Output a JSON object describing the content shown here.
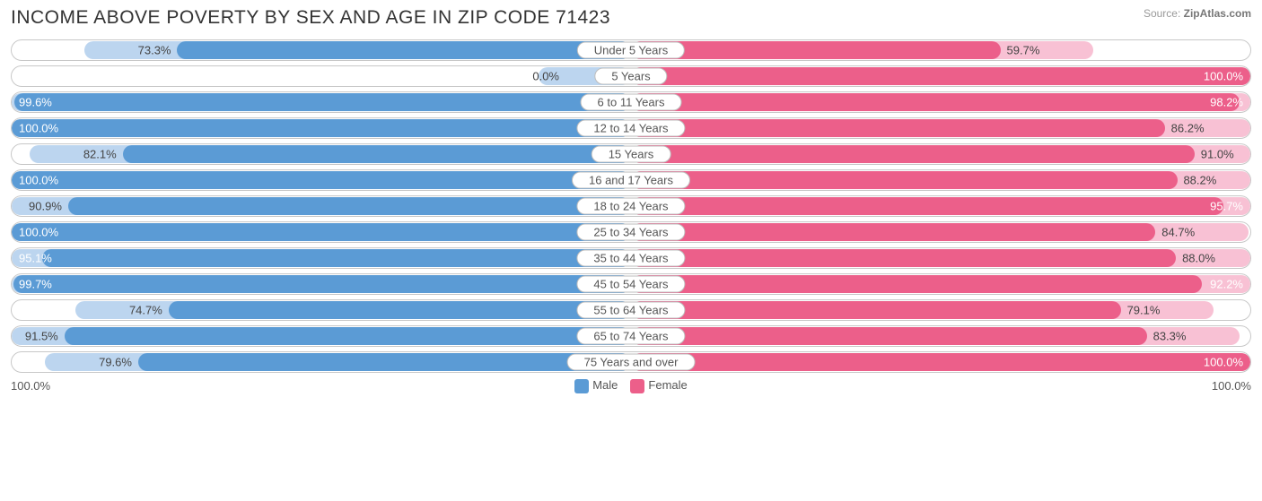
{
  "title": "INCOME ABOVE POVERTY BY SEX AND AGE IN ZIP CODE 71423",
  "source_prefix": "Source: ",
  "source_name": "ZipAtlas.com",
  "chart": {
    "type": "diverging-bar",
    "male_fill": "#5b9bd5",
    "male_track": "#bcd5ef",
    "female_fill": "#ec5f8a",
    "female_track": "#f8c1d4",
    "border_color": "#c8c8c8",
    "label_border": "#bdbdbd",
    "background": "#ffffff",
    "axis_left": "100.0%",
    "axis_right": "100.0%",
    "legend": [
      {
        "label": "Male",
        "color": "#5b9bd5"
      },
      {
        "label": "Female",
        "color": "#ec5f8a"
      }
    ],
    "rows": [
      {
        "category": "Under 5 Years",
        "male": 73.3,
        "female": 59.7,
        "male_label": "73.3%",
        "female_label": "59.7%"
      },
      {
        "category": "5 Years",
        "male": 0.0,
        "female": 100.0,
        "male_label": "0.0%",
        "female_label": "100.0%"
      },
      {
        "category": "6 to 11 Years",
        "male": 99.6,
        "female": 98.2,
        "male_label": "99.6%",
        "female_label": "98.2%"
      },
      {
        "category": "12 to 14 Years",
        "male": 100.0,
        "female": 86.2,
        "male_label": "100.0%",
        "female_label": "86.2%"
      },
      {
        "category": "15 Years",
        "male": 82.1,
        "female": 91.0,
        "male_label": "82.1%",
        "female_label": "91.0%"
      },
      {
        "category": "16 and 17 Years",
        "male": 100.0,
        "female": 88.2,
        "male_label": "100.0%",
        "female_label": "88.2%"
      },
      {
        "category": "18 to 24 Years",
        "male": 90.9,
        "female": 95.7,
        "male_label": "90.9%",
        "female_label": "95.7%"
      },
      {
        "category": "25 to 34 Years",
        "male": 100.0,
        "female": 84.7,
        "male_label": "100.0%",
        "female_label": "84.7%"
      },
      {
        "category": "35 to 44 Years",
        "male": 95.1,
        "female": 88.0,
        "male_label": "95.1%",
        "female_label": "88.0%"
      },
      {
        "category": "45 to 54 Years",
        "male": 99.7,
        "female": 92.2,
        "male_label": "99.7%",
        "female_label": "92.2%"
      },
      {
        "category": "55 to 64 Years",
        "male": 74.7,
        "female": 79.1,
        "male_label": "74.7%",
        "female_label": "79.1%"
      },
      {
        "category": "65 to 74 Years",
        "male": 91.5,
        "female": 83.3,
        "male_label": "91.5%",
        "female_label": "83.3%"
      },
      {
        "category": "75 Years and over",
        "male": 79.6,
        "female": 100.0,
        "male_label": "79.6%",
        "female_label": "100.0%"
      }
    ]
  }
}
